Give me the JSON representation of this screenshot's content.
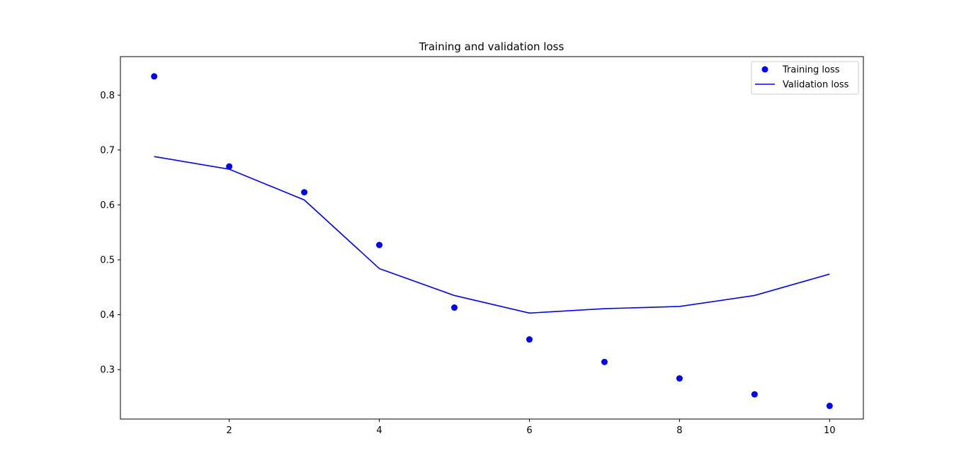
{
  "chart_data": {
    "type": "line",
    "title": "Training and validation loss",
    "xlabel": "",
    "ylabel": "",
    "x": [
      1,
      2,
      3,
      4,
      5,
      6,
      7,
      8,
      9,
      10
    ],
    "xlim": [
      0.55,
      10.45
    ],
    "ylim": [
      0.21,
      0.87
    ],
    "xticks": [
      2,
      4,
      6,
      8,
      10
    ],
    "yticks": [
      0.3,
      0.4,
      0.5,
      0.6,
      0.7,
      0.8
    ],
    "grid": false,
    "legend_position": "upper right",
    "series": [
      {
        "name": "Training loss",
        "style": "markers",
        "color": "#0000ff",
        "values": [
          0.834,
          0.67,
          0.623,
          0.527,
          0.413,
          0.355,
          0.314,
          0.284,
          0.255,
          0.234
        ]
      },
      {
        "name": "Validation loss",
        "style": "line",
        "color": "#0000ff",
        "values": [
          0.688,
          0.665,
          0.609,
          0.484,
          0.435,
          0.403,
          0.411,
          0.415,
          0.435,
          0.474
        ]
      }
    ]
  }
}
